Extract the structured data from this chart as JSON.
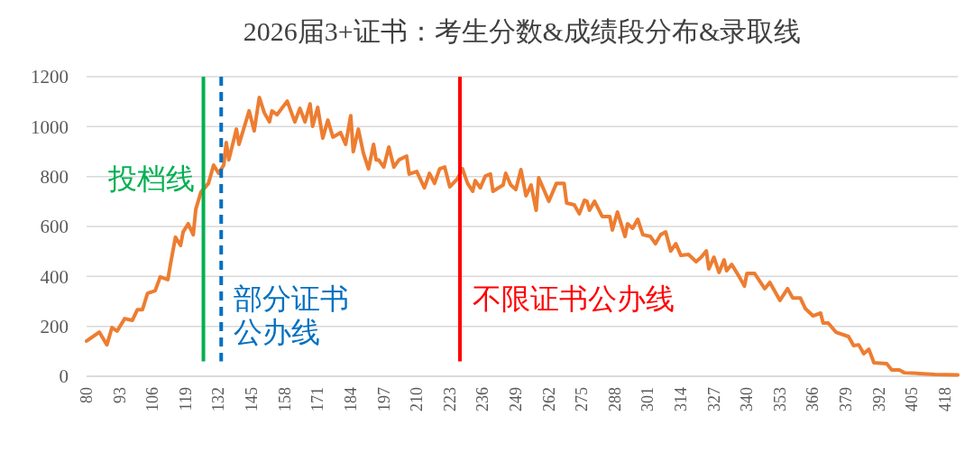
{
  "chart_data": {
    "type": "line",
    "title": "2026届3+证书：考生分数&成绩段分布&录取线",
    "x": [
      80,
      85,
      88,
      90,
      92,
      95,
      98,
      100,
      102,
      104,
      107,
      109,
      112,
      113,
      115,
      117,
      118,
      120,
      122,
      123,
      125,
      128,
      130,
      132,
      134,
      135,
      136,
      139,
      140,
      144,
      146,
      148,
      150,
      152,
      153,
      155,
      159,
      162,
      164,
      166,
      168,
      169,
      171,
      173,
      175,
      177,
      180,
      182,
      184,
      185,
      187,
      189,
      191,
      193,
      194,
      195,
      197,
      199,
      201,
      203,
      206,
      207,
      210,
      213,
      215,
      217,
      219,
      221,
      223,
      226,
      228,
      230,
      232,
      233,
      235,
      237,
      239,
      240,
      244,
      245,
      247,
      249,
      251,
      253,
      255,
      257,
      258,
      260,
      262,
      265,
      268,
      269,
      272,
      274,
      276,
      277,
      278,
      280,
      283,
      286,
      287,
      289,
      292,
      293,
      295,
      297,
      299,
      302,
      304,
      306,
      308,
      310,
      312,
      314,
      317,
      320,
      322,
      324,
      325,
      327,
      329,
      331,
      332,
      334,
      337,
      339,
      340,
      343,
      347,
      349,
      353,
      356,
      358,
      361,
      363,
      366,
      369,
      370,
      372,
      375,
      380,
      382,
      384,
      386,
      388,
      390,
      395,
      397,
      400,
      402,
      408,
      414,
      423
    ],
    "series": [
      {
        "color": "#ed7d31",
        "values": [
          141,
          177,
          126,
          195,
          181,
          231,
          224,
          267,
          267,
          332,
          343,
          398,
          387,
          448,
          557,
          524,
          578,
          611,
          567,
          669,
          737,
          773,
          846,
          813,
          846,
          936,
          867,
          990,
          929,
          1063,
          983,
          1117,
          1055,
          1019,
          1063,
          1048,
          1102,
          1019,
          1073,
          1019,
          1091,
          1001,
          1077,
          954,
          1026,
          958,
          976,
          929,
          1044,
          900,
          990,
          893,
          831,
          929,
          867,
          867,
          838,
          918,
          838,
          867,
          882,
          810,
          820,
          755,
          813,
          773,
          831,
          838,
          759,
          791,
          831,
          773,
          741,
          784,
          755,
          802,
          810,
          741,
          766,
          813,
          766,
          748,
          828,
          723,
          766,
          665,
          795,
          748,
          701,
          773,
          773,
          694,
          687,
          651,
          705,
          701,
          665,
          701,
          640,
          640,
          586,
          658,
          560,
          611,
          593,
          629,
          567,
          560,
          531,
          567,
          578,
          502,
          531,
          484,
          488,
          459,
          477,
          502,
          430,
          477,
          416,
          466,
          423,
          448,
          398,
          361,
          412,
          412,
          351,
          376,
          304,
          351,
          314,
          314,
          271,
          242,
          253,
          213,
          213,
          177,
          159,
          123,
          126,
          90,
          108,
          54,
          51,
          25,
          25,
          14,
          11,
          7,
          5
        ]
      }
    ],
    "xlim": [
      80,
      423
    ],
    "xticks": [
      80,
      93,
      106,
      119,
      132,
      145,
      158,
      171,
      184,
      197,
      210,
      223,
      236,
      249,
      262,
      275,
      288,
      301,
      314,
      327,
      340,
      353,
      366,
      379,
      392,
      405,
      418
    ],
    "ylim": [
      0,
      1200
    ],
    "yticks": [
      0,
      200,
      400,
      600,
      800,
      1000,
      1200
    ],
    "grid": "y",
    "ref_lines": [
      {
        "axis": "x",
        "value": 126,
        "label": "投档线",
        "color": "#00b050",
        "line_style": "solid"
      },
      {
        "axis": "x",
        "value": 133,
        "label": "部分证书公办线",
        "color": "#0070c0",
        "line_style": "dashed"
      },
      {
        "axis": "x",
        "value": 227,
        "label": "不限证书公办线",
        "color": "#ff0000",
        "line_style": "solid"
      }
    ]
  }
}
